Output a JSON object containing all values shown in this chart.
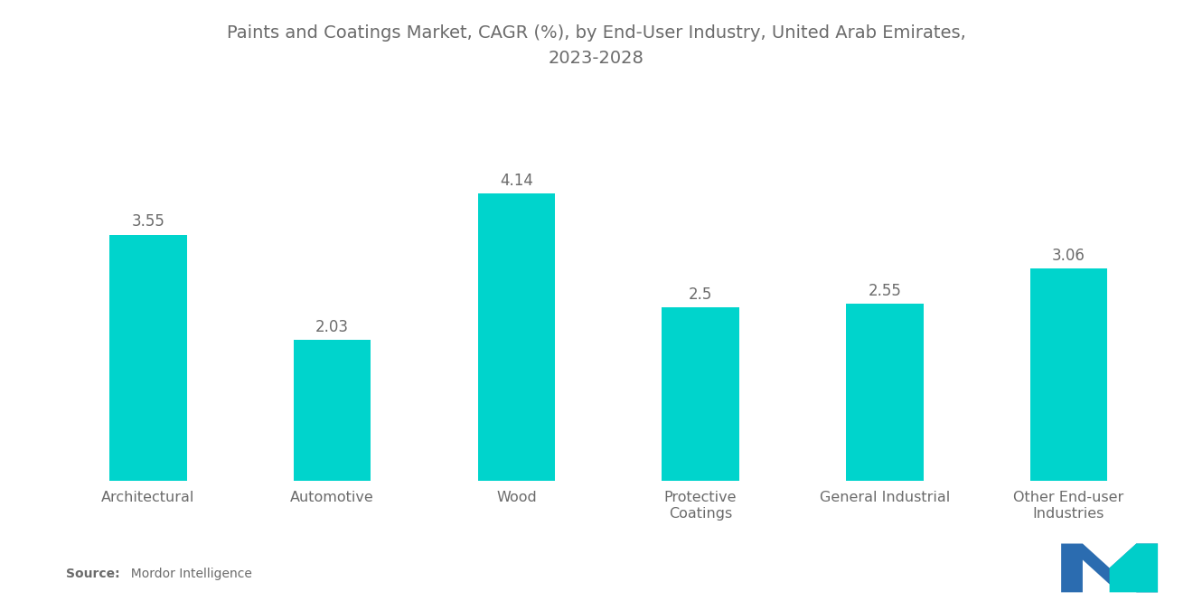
{
  "title": "Paints and Coatings Market, CAGR (%), by End-User Industry, United Arab Emirates,\n2023-2028",
  "categories": [
    "Architectural",
    "Automotive",
    "Wood",
    "Protective\nCoatings",
    "General Industrial",
    "Other End-user\nIndustries"
  ],
  "values": [
    3.55,
    2.03,
    4.14,
    2.5,
    2.55,
    3.06
  ],
  "bar_color": "#00D4CC",
  "background_color": "#ffffff",
  "title_fontsize": 14,
  "label_fontsize": 11.5,
  "value_fontsize": 12,
  "source_bold": "Source:",
  "source_rest": "  Mordor Intelligence",
  "ylim": [
    0,
    5.2
  ],
  "bar_width": 0.42,
  "logo_blue": "#2B6CB0",
  "logo_teal": "#00CEC9",
  "text_color": "#6b6b6b"
}
